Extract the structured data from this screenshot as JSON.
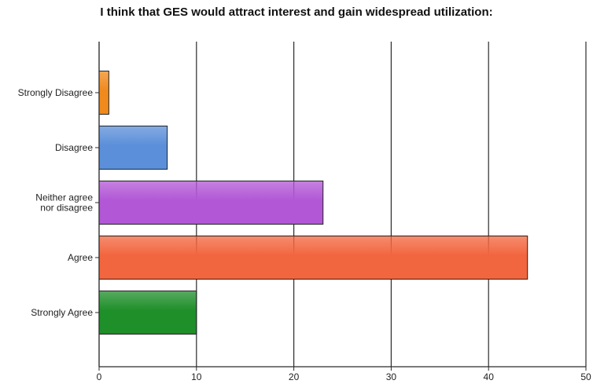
{
  "chart_data": {
    "type": "bar",
    "orientation": "horizontal",
    "title": "I think that GES would attract interest and gain widespread utilization:",
    "categories": [
      "Strongly Disagree",
      "Disagree",
      "Neither agree nor disagree",
      "Agree",
      "Strongly Agree"
    ],
    "category_label_lines": [
      [
        "Strongly Disagree"
      ],
      [
        "Disagree"
      ],
      [
        "Neither agree",
        "nor disagree"
      ],
      [
        "Agree"
      ],
      [
        "Strongly Agree"
      ]
    ],
    "values": [
      1,
      7,
      23,
      44,
      10
    ],
    "bar_colors": [
      "#f08a1c",
      "#5b8fd9",
      "#b257d6",
      "#f2663f",
      "#1f8f2a"
    ],
    "xlim": [
      0,
      50
    ],
    "xticks": [
      0,
      10,
      20,
      30,
      40,
      50
    ],
    "xlabel": "",
    "ylabel": "",
    "grid": "vertical"
  }
}
